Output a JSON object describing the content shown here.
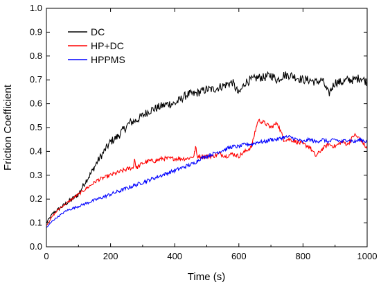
{
  "chart_data": {
    "type": "line",
    "title": "",
    "xlabel": "Time (s)",
    "ylabel": "Friction Coefficient",
    "xlim": [
      0,
      1000
    ],
    "ylim": [
      0.0,
      1.0
    ],
    "xticks": [
      0,
      200,
      400,
      600,
      800,
      1000
    ],
    "yticks": [
      0.0,
      0.1,
      0.2,
      0.3,
      0.4,
      0.5,
      0.6,
      0.7,
      0.8,
      0.9,
      1.0
    ],
    "xtick_labels": [
      "0",
      "200",
      "400",
      "600",
      "800",
      "1000"
    ],
    "ytick_labels": [
      "0.0",
      "0.1",
      "0.2",
      "0.3",
      "0.4",
      "0.5",
      "0.6",
      "0.7",
      "0.8",
      "0.9",
      "1.0"
    ],
    "grid": false,
    "legend_position": "top-left",
    "series": [
      {
        "name": "DC",
        "color": "#000000",
        "x": [
          0,
          20,
          40,
          60,
          80,
          100,
          120,
          140,
          160,
          180,
          200,
          220,
          240,
          260,
          280,
          300,
          320,
          340,
          360,
          380,
          400,
          420,
          440,
          460,
          480,
          500,
          520,
          540,
          560,
          580,
          600,
          620,
          640,
          660,
          680,
          700,
          720,
          740,
          760,
          780,
          800,
          820,
          840,
          860,
          880,
          900,
          920,
          940,
          960,
          980,
          1000
        ],
        "y": [
          0.1,
          0.14,
          0.16,
          0.18,
          0.2,
          0.22,
          0.27,
          0.31,
          0.36,
          0.4,
          0.44,
          0.46,
          0.49,
          0.52,
          0.53,
          0.55,
          0.57,
          0.58,
          0.59,
          0.6,
          0.6,
          0.62,
          0.64,
          0.64,
          0.65,
          0.66,
          0.66,
          0.67,
          0.68,
          0.69,
          0.64,
          0.69,
          0.7,
          0.71,
          0.71,
          0.72,
          0.7,
          0.72,
          0.72,
          0.71,
          0.7,
          0.7,
          0.69,
          0.7,
          0.64,
          0.69,
          0.69,
          0.7,
          0.7,
          0.71,
          0.69
        ]
      },
      {
        "name": "HP+DC",
        "color": "#ff0000",
        "x": [
          0,
          20,
          40,
          60,
          80,
          100,
          120,
          140,
          160,
          180,
          200,
          220,
          240,
          260,
          270,
          275,
          280,
          300,
          320,
          340,
          360,
          380,
          400,
          420,
          440,
          460,
          465,
          470,
          480,
          500,
          520,
          540,
          560,
          580,
          600,
          620,
          640,
          650,
          660,
          680,
          700,
          720,
          740,
          760,
          780,
          800,
          820,
          840,
          860,
          880,
          900,
          920,
          940,
          960,
          980,
          1000
        ],
        "y": [
          0.09,
          0.13,
          0.16,
          0.18,
          0.2,
          0.22,
          0.24,
          0.26,
          0.28,
          0.29,
          0.3,
          0.31,
          0.32,
          0.33,
          0.33,
          0.37,
          0.33,
          0.35,
          0.36,
          0.36,
          0.37,
          0.37,
          0.37,
          0.37,
          0.37,
          0.38,
          0.42,
          0.38,
          0.38,
          0.38,
          0.38,
          0.39,
          0.38,
          0.39,
          0.38,
          0.4,
          0.42,
          0.48,
          0.53,
          0.52,
          0.5,
          0.52,
          0.45,
          0.45,
          0.44,
          0.43,
          0.42,
          0.38,
          0.41,
          0.43,
          0.42,
          0.44,
          0.43,
          0.47,
          0.45,
          0.41
        ]
      },
      {
        "name": "HPPMS",
        "color": "#0000ff",
        "x": [
          0,
          20,
          40,
          60,
          80,
          100,
          120,
          140,
          160,
          180,
          200,
          220,
          240,
          260,
          280,
          300,
          320,
          340,
          360,
          380,
          400,
          420,
          440,
          460,
          480,
          500,
          520,
          540,
          560,
          580,
          600,
          620,
          640,
          660,
          680,
          700,
          720,
          740,
          760,
          780,
          800,
          820,
          840,
          860,
          880,
          900,
          920,
          940,
          960,
          980,
          1000
        ],
        "y": [
          0.08,
          0.11,
          0.13,
          0.15,
          0.16,
          0.17,
          0.18,
          0.19,
          0.2,
          0.21,
          0.22,
          0.23,
          0.24,
          0.25,
          0.26,
          0.27,
          0.28,
          0.29,
          0.3,
          0.31,
          0.32,
          0.33,
          0.34,
          0.35,
          0.37,
          0.38,
          0.39,
          0.4,
          0.41,
          0.42,
          0.42,
          0.43,
          0.43,
          0.44,
          0.44,
          0.45,
          0.45,
          0.46,
          0.46,
          0.45,
          0.44,
          0.45,
          0.44,
          0.45,
          0.44,
          0.45,
          0.44,
          0.45,
          0.44,
          0.45,
          0.44
        ]
      }
    ]
  }
}
